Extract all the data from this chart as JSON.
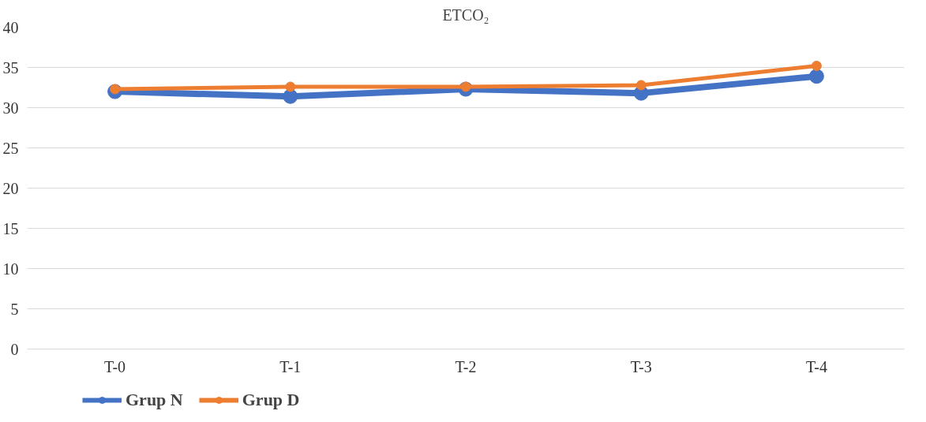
{
  "chart_data": {
    "type": "line",
    "title": "ETCO₂",
    "categories": [
      "T-0",
      "T-1",
      "T-2",
      "T-3",
      "T-4"
    ],
    "series": [
      {
        "name": "Grup N",
        "color": "#4472c4",
        "values": [
          32.0,
          31.4,
          32.3,
          31.8,
          33.9
        ]
      },
      {
        "name": "Grup D",
        "color": "#ed7d31",
        "values": [
          32.3,
          32.6,
          32.6,
          32.8,
          35.2
        ]
      }
    ],
    "ylim": [
      0,
      40
    ],
    "yticks": [
      0,
      5,
      10,
      15,
      20,
      25,
      30,
      35,
      40
    ],
    "grid": "y",
    "legend": "bottom left",
    "marker": "circle",
    "line_style": "solid"
  }
}
